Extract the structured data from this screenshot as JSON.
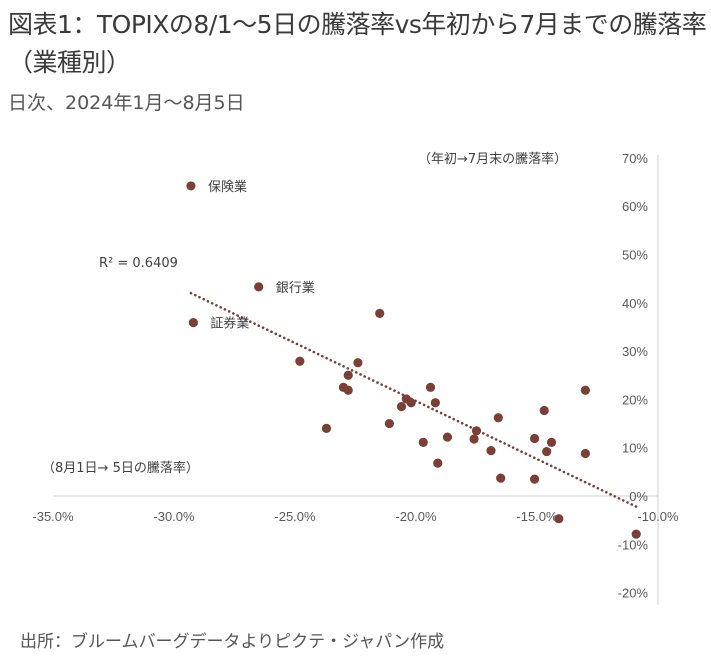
{
  "header": {
    "title": "図表1：TOPIXの8/1～5日の騰落率vs年初から7月までの騰落率（業種別）",
    "subtitle": "日次、2024年1月～8月5日"
  },
  "footer": {
    "source": "出所：ブルームバーグデータよりピクテ・ジャパン作成"
  },
  "colors": {
    "marker": "#7b3f35",
    "trendline": "#7b3f35",
    "axis": "#d0d0d0",
    "text": "#404040"
  },
  "chart_data": {
    "type": "scatter",
    "title": "図表1：TOPIXの8/1～5日の騰落率vs年初から7月までの騰落率（業種別）",
    "subtitle": "日次、2024年1月～8月5日",
    "xlabel": "（8月1日→ 5日の騰落率）",
    "ylabel": "（年初→7月末の騰落率）",
    "xlim": [
      -35,
      -10
    ],
    "ylim": [
      -20,
      70
    ],
    "x_ticks": [
      -35,
      -30,
      -25,
      -20,
      -15,
      -10
    ],
    "x_tick_labels": [
      "-35.0%",
      "-30.0%",
      "-25.0%",
      "-20.0%",
      "-15.0%",
      "-10.0%"
    ],
    "y_ticks": [
      70,
      60,
      50,
      40,
      30,
      20,
      10,
      0,
      -10,
      -20
    ],
    "y_tick_labels": [
      "70%",
      "60%",
      "50%",
      "40%",
      "30%",
      "20%",
      "10%",
      "0%",
      "-10%",
      "-20%"
    ],
    "grid": false,
    "r_squared_label": "R² = 0.6409",
    "trendline": {
      "style": "dotted",
      "x": [
        -29.3,
        -10.9
      ],
      "y": [
        42.0,
        -2.2
      ]
    },
    "points": [
      {
        "x": -29.3,
        "y": 64.2,
        "label": "保険業"
      },
      {
        "x": -26.5,
        "y": 43.3,
        "label": "銀行業"
      },
      {
        "x": -29.2,
        "y": 35.9,
        "label": "証券業"
      },
      {
        "x": -21.5,
        "y": 37.8,
        "label": ""
      },
      {
        "x": -24.8,
        "y": 27.9,
        "label": ""
      },
      {
        "x": -22.4,
        "y": 27.6,
        "label": ""
      },
      {
        "x": -22.8,
        "y": 25.0,
        "label": ""
      },
      {
        "x": -23.0,
        "y": 22.5,
        "label": ""
      },
      {
        "x": -22.8,
        "y": 21.9,
        "label": ""
      },
      {
        "x": -19.4,
        "y": 22.5,
        "label": ""
      },
      {
        "x": -19.2,
        "y": 19.3,
        "label": ""
      },
      {
        "x": -20.4,
        "y": 20.1,
        "label": ""
      },
      {
        "x": -20.2,
        "y": 19.3,
        "label": ""
      },
      {
        "x": -20.6,
        "y": 18.5,
        "label": ""
      },
      {
        "x": -21.1,
        "y": 15.0,
        "label": ""
      },
      {
        "x": -23.7,
        "y": 14.0,
        "label": ""
      },
      {
        "x": -16.6,
        "y": 16.2,
        "label": ""
      },
      {
        "x": -19.7,
        "y": 11.1,
        "label": ""
      },
      {
        "x": -18.7,
        "y": 12.2,
        "label": ""
      },
      {
        "x": -17.5,
        "y": 13.5,
        "label": ""
      },
      {
        "x": -17.6,
        "y": 11.8,
        "label": ""
      },
      {
        "x": -16.9,
        "y": 9.4,
        "label": ""
      },
      {
        "x": -19.1,
        "y": 6.8,
        "label": ""
      },
      {
        "x": -16.5,
        "y": 3.7,
        "label": ""
      },
      {
        "x": -15.1,
        "y": 11.9,
        "label": ""
      },
      {
        "x": -15.1,
        "y": 3.5,
        "label": ""
      },
      {
        "x": -13.0,
        "y": 21.9,
        "label": ""
      },
      {
        "x": -14.7,
        "y": 17.7,
        "label": ""
      },
      {
        "x": -14.4,
        "y": 11.1,
        "label": ""
      },
      {
        "x": -14.6,
        "y": 9.2,
        "label": ""
      },
      {
        "x": -13.0,
        "y": 8.8,
        "label": ""
      },
      {
        "x": -14.1,
        "y": -4.7,
        "label": ""
      },
      {
        "x": -10.9,
        "y": -7.9,
        "label": ""
      }
    ]
  }
}
